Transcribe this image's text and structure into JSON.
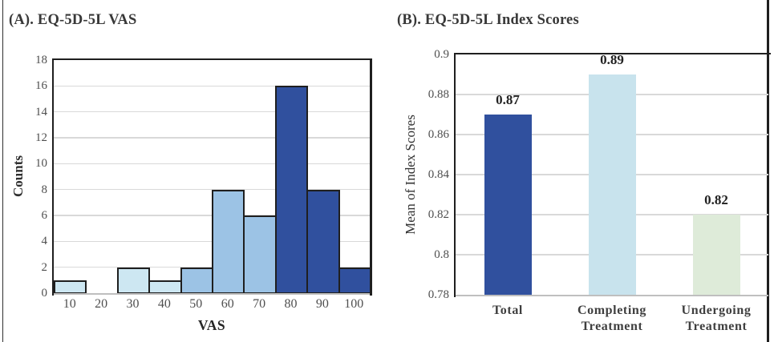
{
  "figure": {
    "background": "#ffffff",
    "frame_left_color": "#2e2e2e",
    "frame_right_color": "#1f1f1f",
    "gridline_color": "#d9d9d9",
    "axis_color": "#1f1f1f"
  },
  "chart_data": [
    {
      "type": "bar",
      "subtype": "histogram",
      "title": "(A). EQ-5D-5L VAS",
      "xlabel": "VAS",
      "ylabel": "Counts",
      "categories": [
        "10",
        "20",
        "30",
        "40",
        "50",
        "60",
        "70",
        "80",
        "90",
        "100"
      ],
      "values": [
        1,
        0,
        2,
        1,
        2,
        8,
        6,
        16,
        8,
        2
      ],
      "bar_colors": [
        "#CDE7F2",
        "#CDE7F2",
        "#CDE7F2",
        "#CDE7F2",
        "#9CC3E5",
        "#9CC3E5",
        "#9CC3E5",
        "#30509E",
        "#30509E",
        "#30509E"
      ],
      "bar_border_color": "#1f1f1f",
      "ylim": [
        0,
        18
      ],
      "yticks_top_to_bottom": [
        "18",
        "16",
        "14",
        "12",
        "10",
        "8",
        "6",
        "4",
        "2",
        "0"
      ],
      "grid": true,
      "legend": "none"
    },
    {
      "type": "bar",
      "title": "(B). EQ-5D-5L Index Scores",
      "xlabel": "",
      "ylabel": "Mean of Index Scores",
      "categories": [
        "Total",
        "Completing Treatment",
        "Undergoing Treatment"
      ],
      "values": [
        0.87,
        0.89,
        0.82
      ],
      "value_labels": [
        "0.87",
        "0.89",
        "0.82"
      ],
      "bar_colors": [
        "#30509E",
        "#C8E3ED",
        "#DEEBD9"
      ],
      "ylim": [
        0.78,
        0.9
      ],
      "yticks_top_to_bottom": [
        "0.9",
        "0.88",
        "0.86",
        "0.84",
        "0.82",
        "0.8",
        "0.78"
      ],
      "grid": true,
      "legend": "none"
    }
  ]
}
